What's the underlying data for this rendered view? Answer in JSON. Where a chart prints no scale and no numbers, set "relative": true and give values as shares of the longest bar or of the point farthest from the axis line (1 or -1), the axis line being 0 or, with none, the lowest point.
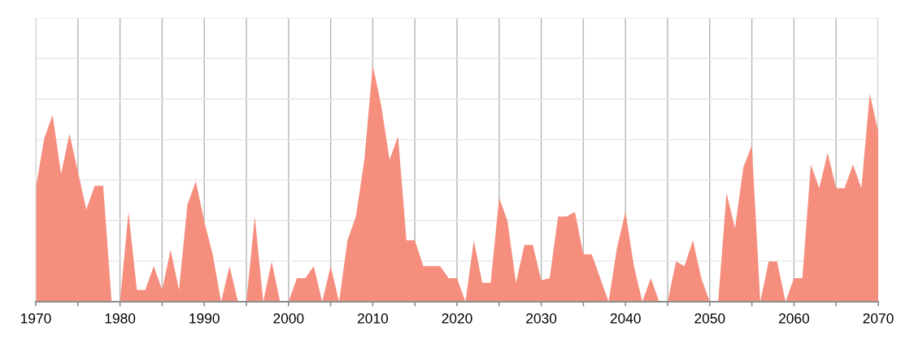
{
  "chart_data": {
    "type": "area",
    "relative": true,
    "color": "#f68e7e",
    "grid": true,
    "xlim": [
      1970,
      2070
    ],
    "xticks": [
      1970,
      {
        "value": 1975,
        "label": null
      },
      1980,
      {
        "value": 1985,
        "label": null
      },
      1990,
      {
        "value": 1995,
        "label": null
      },
      2000,
      {
        "value": 2005,
        "label": null
      },
      2010,
      {
        "value": 2015,
        "label": null
      },
      2020,
      {
        "value": 2025,
        "label": null
      },
      2030,
      {
        "value": 2035,
        "label": null
      },
      2040,
      {
        "value": 2045,
        "label": null
      },
      2050,
      {
        "value": 2055,
        "label": null
      },
      2060,
      {
        "value": 2065,
        "label": null
      },
      2070
    ],
    "x": [
      1970,
      1971,
      1972,
      1973,
      1974,
      1975,
      1976,
      1977,
      1978,
      1979,
      1980,
      1981,
      1982,
      1983,
      1984,
      1985,
      1986,
      1987,
      1988,
      1989,
      1990,
      1991,
      1992,
      1993,
      1994,
      1995,
      1996,
      1997,
      1998,
      1999,
      2000,
      2001,
      2002,
      2003,
      2004,
      2005,
      2006,
      2007,
      2008,
      2009,
      2010,
      2011,
      2012,
      2013,
      2014,
      2015,
      2016,
      2017,
      2018,
      2019,
      2020,
      2021,
      2022,
      2023,
      2024,
      2025,
      2026,
      2027,
      2028,
      2029,
      2030,
      2031,
      2032,
      2033,
      2034,
      2035,
      2036,
      2037,
      2038,
      2039,
      2040,
      2041,
      2042,
      2043,
      2044,
      2045,
      2046,
      2047,
      2048,
      2049,
      2050,
      2051,
      2052,
      2053,
      2054,
      2055,
      2056,
      2057,
      2058,
      2059,
      2060,
      2061,
      2062,
      2063,
      2064,
      2065,
      2066,
      2067,
      2068,
      2069,
      2070
    ],
    "values": [
      0.48,
      0.69,
      0.79,
      0.54,
      0.71,
      0.55,
      0.39,
      0.49,
      0.49,
      0,
      0,
      0.38,
      0.05,
      0.05,
      0.15,
      0.05,
      0.22,
      0.05,
      0.41,
      0.51,
      0.34,
      0.2,
      0,
      0.15,
      0,
      0,
      0.36,
      0,
      0.17,
      0,
      0,
      0.1,
      0.1,
      0.15,
      0,
      0.15,
      0,
      0.26,
      0.36,
      0.6,
      1,
      0.83,
      0.6,
      0.7,
      0.26,
      0.26,
      0.15,
      0.15,
      0.15,
      0.1,
      0.1,
      0,
      0.26,
      0.08,
      0.08,
      0.44,
      0.34,
      0.08,
      0.24,
      0.24,
      0.09,
      0.1,
      0.36,
      0.36,
      0.38,
      0.2,
      0.2,
      0.1,
      0,
      0.23,
      0.38,
      0.15,
      0,
      0.1,
      0,
      0,
      0.17,
      0.15,
      0.26,
      0.1,
      0,
      0,
      0.46,
      0.31,
      0.57,
      0.66,
      0,
      0.17,
      0.17,
      0,
      0.1,
      0.1,
      0.58,
      0.48,
      0.63,
      0.48,
      0.48,
      0.58,
      0.48,
      0.88,
      0.72
    ]
  }
}
